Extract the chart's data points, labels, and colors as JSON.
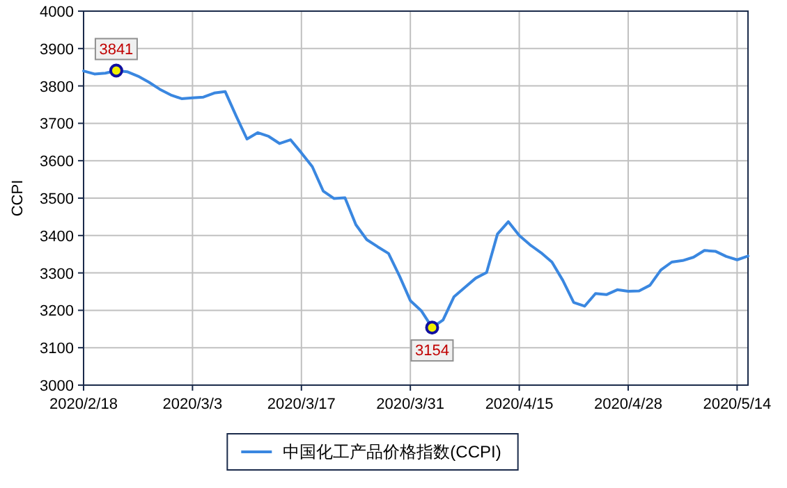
{
  "chart_data": {
    "type": "line",
    "ylabel": "CCPI",
    "categories": [
      "2020/2/18",
      null,
      null,
      null,
      null,
      null,
      null,
      null,
      null,
      null,
      "2020/3/3",
      null,
      null,
      null,
      null,
      null,
      null,
      null,
      null,
      null,
      "2020/3/17",
      null,
      null,
      null,
      null,
      null,
      null,
      null,
      null,
      null,
      "2020/3/31",
      null,
      null,
      null,
      null,
      null,
      null,
      null,
      null,
      null,
      "2020/4/15",
      null,
      null,
      null,
      null,
      null,
      null,
      null,
      null,
      null,
      "2020/4/28",
      null,
      null,
      null,
      null,
      null,
      null,
      null,
      null,
      null,
      "2020/5/14",
      null
    ],
    "series": [
      {
        "name": "中国化工产品价格指数(CCPI)",
        "color": "#3a87e0",
        "values": [
          3840,
          3832,
          3834,
          3841,
          3838,
          3826,
          3810,
          3791,
          3776,
          3766,
          3768,
          3770,
          3781,
          3785,
          3720,
          3658,
          3675,
          3665,
          3646,
          3656,
          3621,
          3584,
          3519,
          3499,
          3501,
          3429,
          3389,
          3370,
          3352,
          3292,
          3226,
          3199,
          3154,
          3174,
          3236,
          3261,
          3286,
          3301,
          3404,
          3437,
          3400,
          3375,
          3354,
          3329,
          3280,
          3221,
          3211,
          3245,
          3242,
          3255,
          3251,
          3252,
          3267,
          3308,
          3329,
          3333,
          3342,
          3360,
          3358,
          3344,
          3335,
          3345
        ]
      }
    ],
    "ylim": [
      3000,
      4000
    ],
    "yticks": [
      3000,
      3100,
      3200,
      3300,
      3400,
      3500,
      3600,
      3700,
      3800,
      3900,
      4000
    ],
    "grid": true,
    "legend": "bottom",
    "line_style": "solid",
    "annotations": [
      {
        "text": "3841",
        "y": 3841
      },
      {
        "text": "3154",
        "y": 3154
      }
    ]
  }
}
